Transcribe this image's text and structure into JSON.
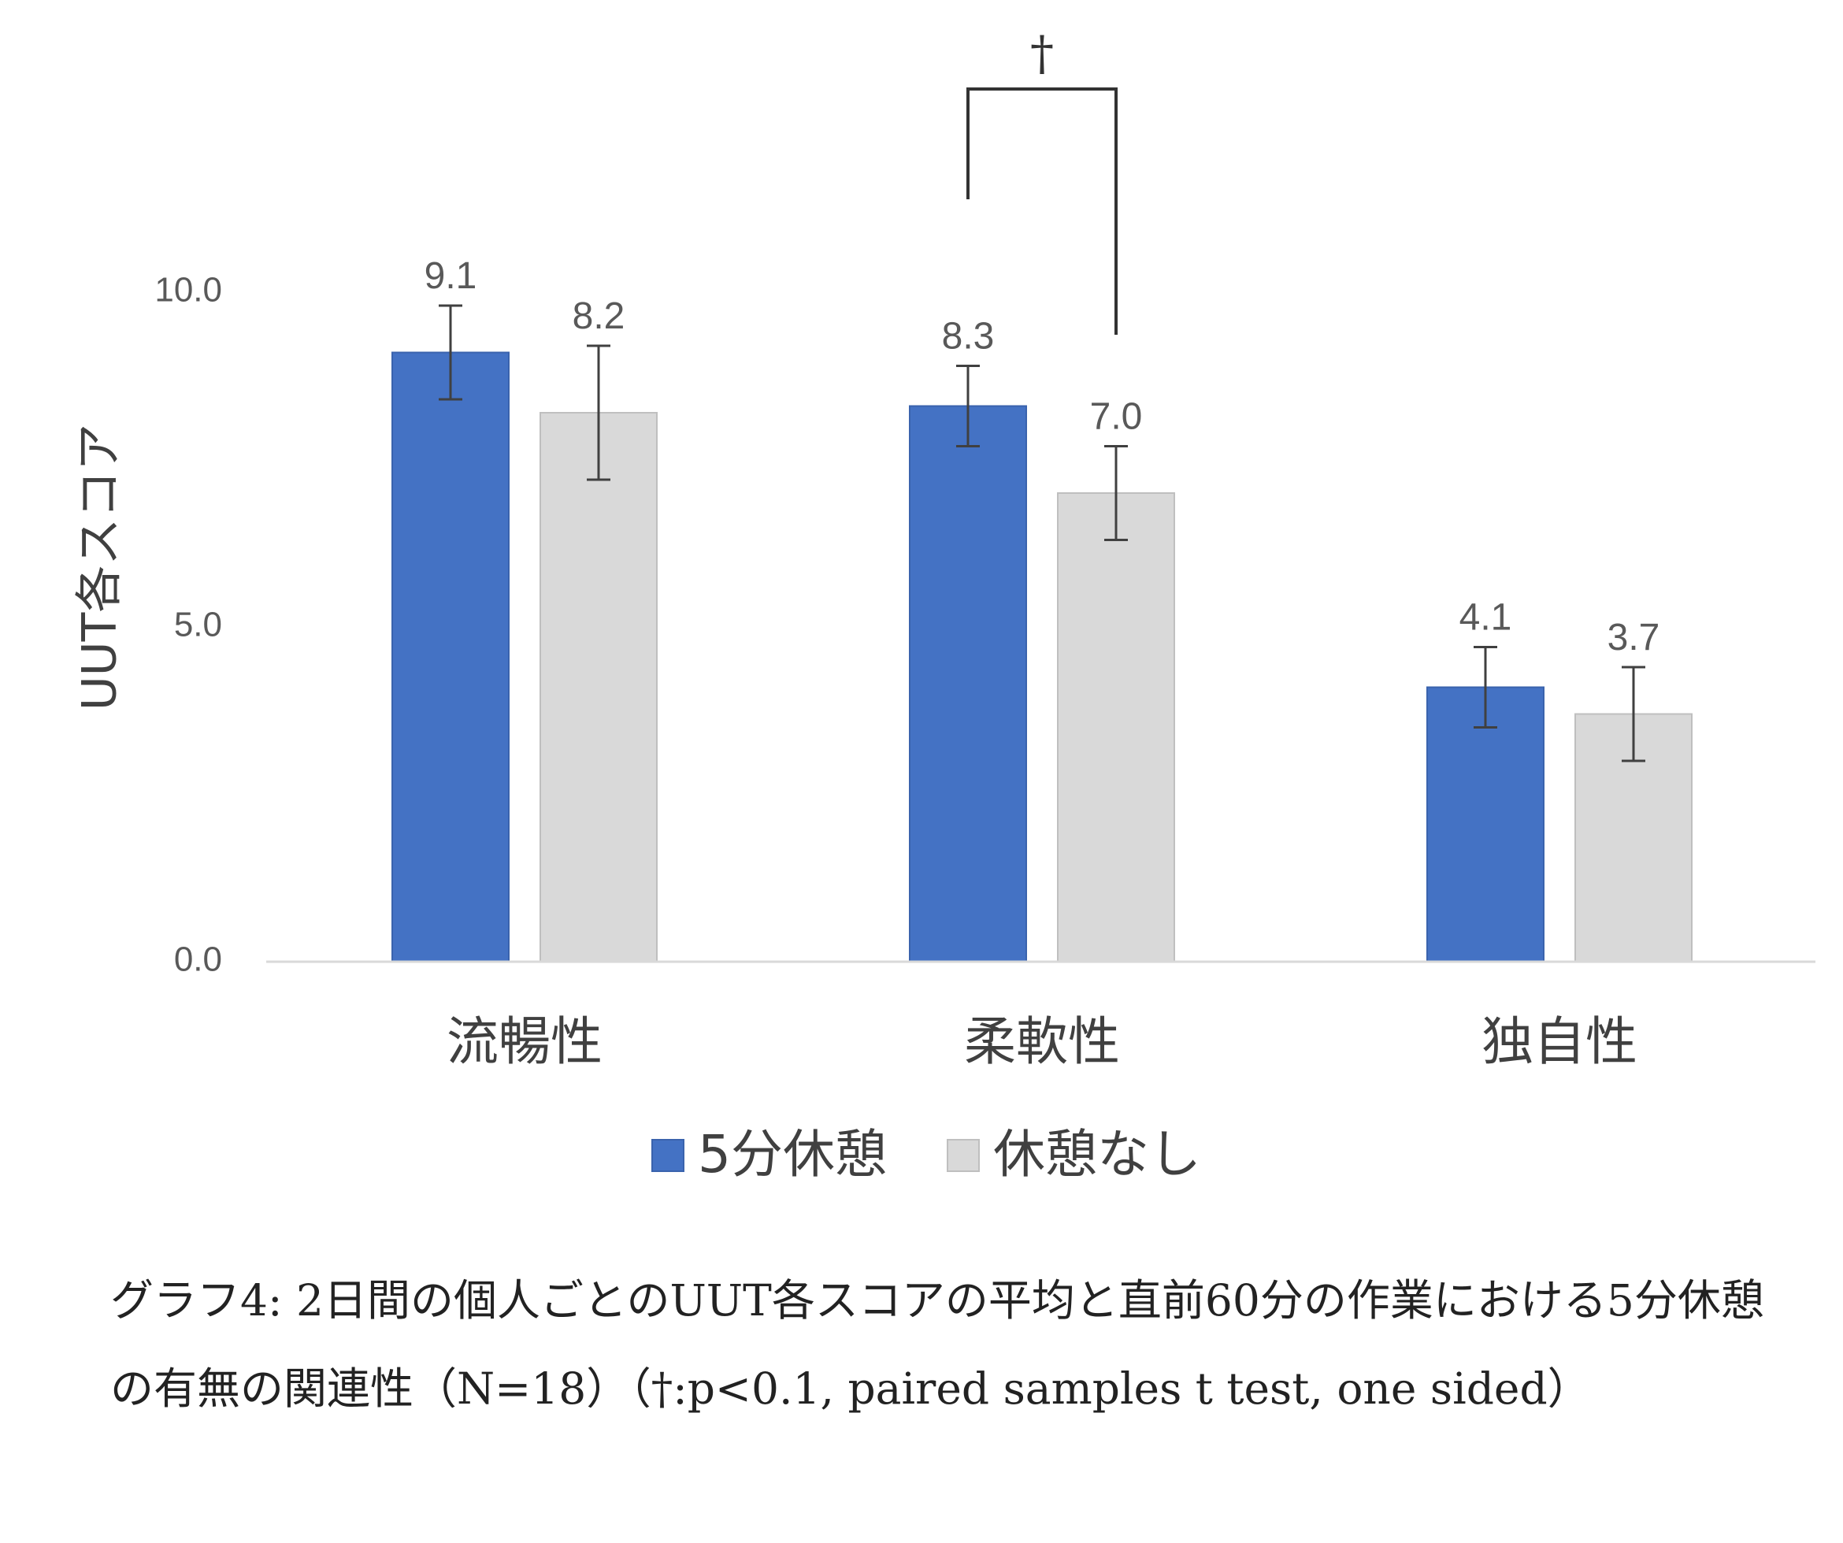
{
  "chart_data": {
    "type": "bar",
    "categories": [
      "流暢性",
      "柔軟性",
      "独自性"
    ],
    "series": [
      {
        "name": "5分休憩",
        "color": "#4472C4",
        "values": [
          9.1,
          8.3,
          4.1
        ],
        "error": [
          0.7,
          0.6,
          0.6
        ]
      },
      {
        "name": "休憩なし",
        "color": "#D9D9D9",
        "values": [
          8.2,
          7.0,
          3.7
        ],
        "error": [
          1.0,
          0.7,
          0.7
        ]
      }
    ],
    "data_labels": [
      [
        "9.1",
        "8.3",
        "4.1"
      ],
      [
        "8.2",
        "7.0",
        "3.7"
      ]
    ],
    "ylabel": "UUT各スコア",
    "xlabel": "",
    "ylim": [
      0,
      10
    ],
    "yticks": [
      "0.0",
      "5.0",
      "10.0"
    ],
    "ytick_values": [
      0,
      5,
      10
    ],
    "grid": false,
    "legend_position": "bottom",
    "significance": {
      "category": "柔軟性",
      "symbol": "†"
    }
  },
  "caption": "グラフ4: 2日間の個人ごとのUUT各スコアの平均と直前60分の作業における5分休憩の有無の関連性（N=18）（†:p<0.1, paired samples t test, one sided）"
}
